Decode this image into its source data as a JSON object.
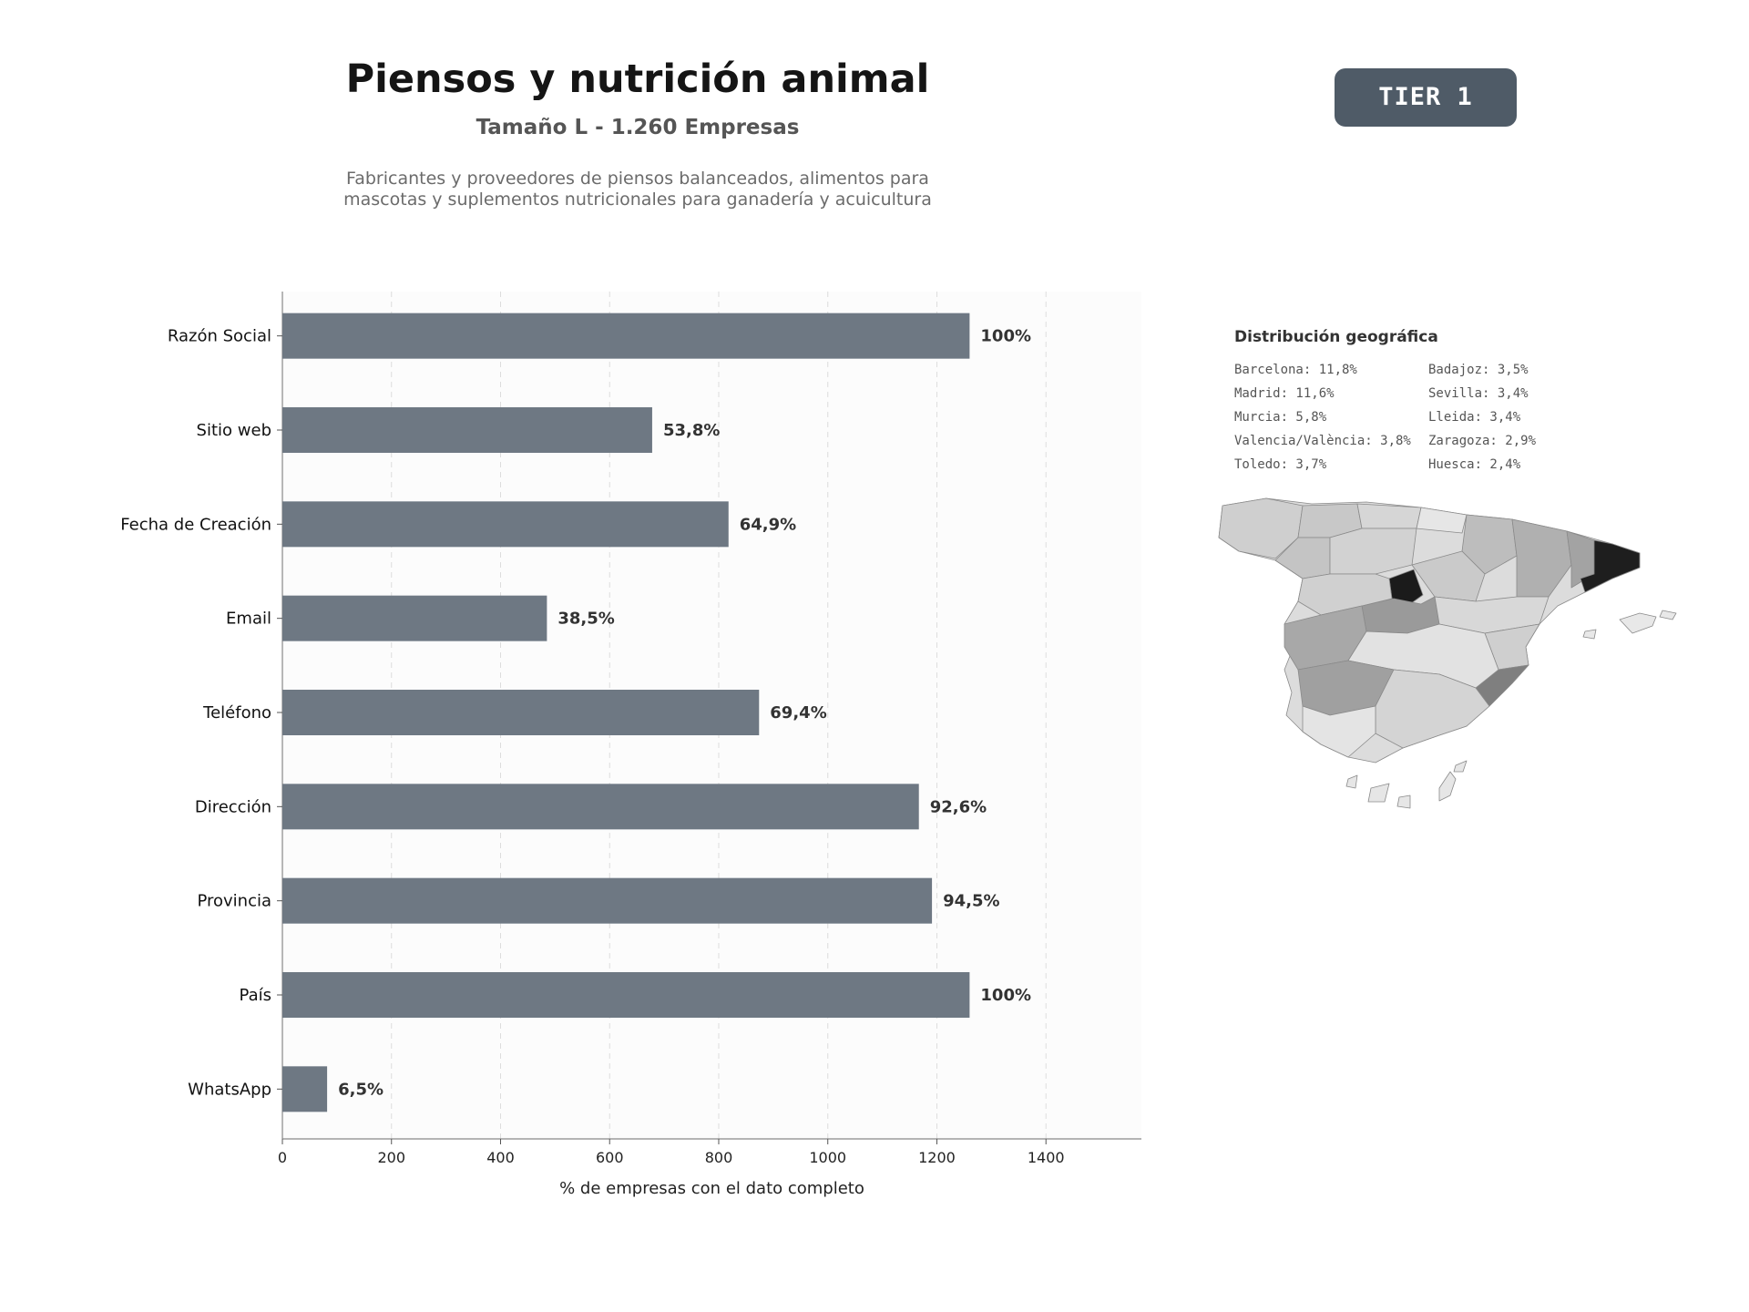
{
  "header": {
    "title": "Piensos y nutrición animal",
    "subtitle": "Tamaño L - 1.260 Empresas",
    "description_line1": "Fabricantes y proveedores de piensos balanceados, alimentos para",
    "description_line2": "mascotas y suplementos nutricionales para ganadería y acuicultura",
    "tier": "TIER 1"
  },
  "chart_data": {
    "type": "bar",
    "orientation": "horizontal",
    "categories": [
      "Razón Social",
      "Sitio web",
      "Fecha de Creación",
      "Email",
      "Teléfono",
      "Dirección",
      "Provincia",
      "País",
      "WhatsApp"
    ],
    "values": [
      1260,
      678,
      818,
      485,
      874,
      1167,
      1191,
      1260,
      82
    ],
    "labels": [
      "100%",
      "53,8%",
      "64,9%",
      "38,5%",
      "69,4%",
      "92,6%",
      "94,5%",
      "100%",
      "6,5%"
    ],
    "xlabel": "% de empresas con el dato completo",
    "xlim": [
      0,
      1575
    ],
    "xticks": [
      "0",
      "200",
      "400",
      "600",
      "800",
      "1000",
      "1200",
      "1400"
    ],
    "grid": true,
    "bar_color": "#6e7883"
  },
  "geo": {
    "title": "Distribución geográfica",
    "items": [
      "Barcelona: 11,8%",
      "Madrid: 11,6%",
      "Murcia: 5,8%",
      "Valencia/València: 3,8%",
      "Toledo: 3,7%",
      "Badajoz: 3,5%",
      "Sevilla: 3,4%",
      "Lleida: 3,4%",
      "Zaragoza: 2,9%",
      "Huesca: 2,4%"
    ]
  }
}
